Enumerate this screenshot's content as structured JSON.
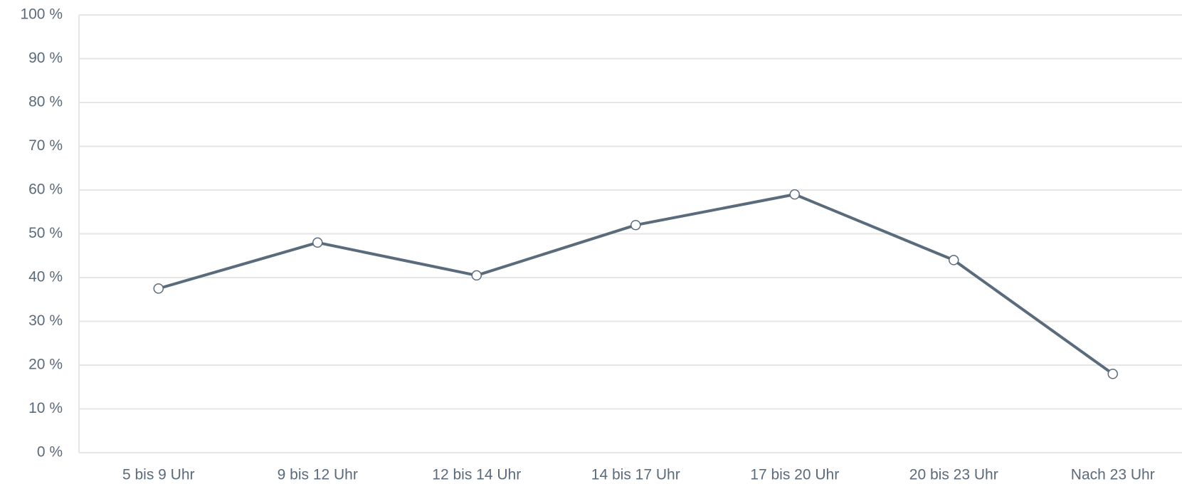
{
  "chart_data": {
    "type": "line",
    "categories": [
      "5 bis 9 Uhr",
      "9 bis 12 Uhr",
      "12 bis 14 Uhr",
      "14 bis 17 Uhr",
      "17 bis 20 Uhr",
      "20 bis 23 Uhr",
      "Nach 23 Uhr"
    ],
    "values": [
      37.5,
      48,
      40.5,
      52,
      59,
      44,
      18
    ],
    "color": "#5a6b7c",
    "ylim": [
      0,
      100
    ],
    "yticks": [
      {
        "value": 0,
        "label": "0 %"
      },
      {
        "value": 10,
        "label": "10 %"
      },
      {
        "value": 20,
        "label": "20 %"
      },
      {
        "value": 30,
        "label": "30 %"
      },
      {
        "value": 40,
        "label": "40 %"
      },
      {
        "value": 50,
        "label": "50 %"
      },
      {
        "value": 60,
        "label": "60 %"
      },
      {
        "value": 70,
        "label": "70 %"
      },
      {
        "value": 80,
        "label": "80 %"
      },
      {
        "value": 90,
        "label": "90 %"
      },
      {
        "value": 100,
        "label": "100 %"
      }
    ],
    "grid": true
  }
}
